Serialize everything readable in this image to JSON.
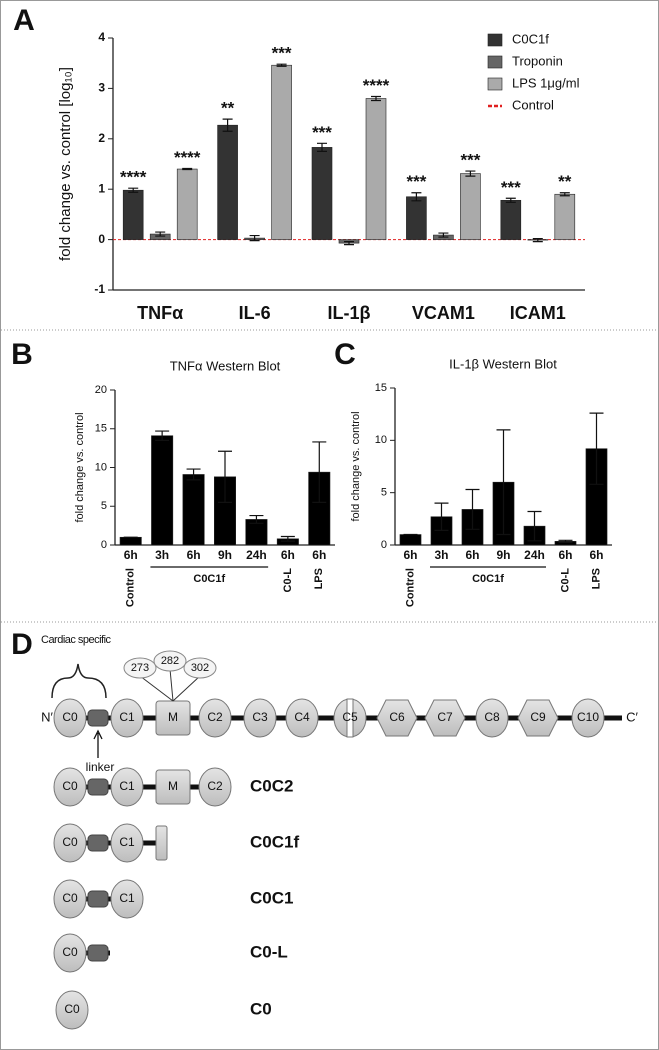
{
  "chart_data": [
    {
      "type": "bar",
      "panel_label": "A",
      "ylabel": "fold change vs. control [log₁₀]",
      "categories": [
        "TNFα",
        "IL-6",
        "IL-1β",
        "VCAM1",
        "ICAM1"
      ],
      "series": [
        {
          "name": "C0C1f",
          "color": "#333333",
          "values": [
            0.98,
            2.27,
            1.83,
            0.85,
            0.78
          ],
          "errors": [
            0.04,
            0.12,
            0.08,
            0.08,
            0.04
          ],
          "significance": [
            "****",
            "**",
            "***",
            "***",
            "***"
          ]
        },
        {
          "name": "Troponin",
          "color": "#666666",
          "values": [
            0.11,
            0.03,
            -0.07,
            0.09,
            -0.01
          ],
          "errors": [
            0.04,
            0.05,
            0.03,
            0.04,
            0.03
          ]
        },
        {
          "name": "LPS 1μg/ml",
          "color": "#aaaaaa",
          "values": [
            1.4,
            3.46,
            2.8,
            1.31,
            0.9
          ],
          "errors": [
            0.01,
            0.02,
            0.04,
            0.05,
            0.03
          ],
          "significance": [
            "****",
            "***",
            "****",
            "***",
            "**"
          ]
        }
      ],
      "reference_line": {
        "name": "Control",
        "value": 0,
        "color": "#e02020"
      },
      "ylim": [
        -1,
        4
      ],
      "yticks": [
        -1,
        0,
        1,
        2,
        3,
        4
      ],
      "legend": "top-right"
    },
    {
      "type": "bar",
      "panel_label": "B",
      "title": "TNFα  Western Blot",
      "ylabel": "fold change vs. control",
      "categories": [
        "6h",
        "3h",
        "6h",
        "9h",
        "24h",
        "6h",
        "6h"
      ],
      "values": [
        1.0,
        14.1,
        9.1,
        8.8,
        3.3,
        0.8,
        9.4
      ],
      "errors": [
        0,
        0.6,
        0.7,
        3.3,
        0.5,
        0.3,
        3.9
      ],
      "color": "#000000",
      "groups": [
        {
          "label": "Control",
          "start": 0,
          "end": 0
        },
        {
          "label": "C0C1f",
          "start": 1,
          "end": 4
        },
        {
          "label": "C0-L",
          "start": 5,
          "end": 5
        },
        {
          "label": "LPS",
          "start": 6,
          "end": 6
        }
      ],
      "ylim": [
        0,
        20
      ],
      "yticks": [
        0,
        5,
        10,
        15,
        20
      ]
    },
    {
      "type": "bar",
      "panel_label": "C",
      "title": "IL-1β Western Blot",
      "ylabel": "fold change vs. control",
      "categories": [
        "6h",
        "3h",
        "6h",
        "9h",
        "24h",
        "6h",
        "6h"
      ],
      "values": [
        1.0,
        2.7,
        3.4,
        6.0,
        1.8,
        0.35,
        9.2
      ],
      "errors": [
        0,
        1.3,
        1.9,
        5.0,
        1.4,
        0.1,
        3.4
      ],
      "color": "#000000",
      "groups": [
        {
          "label": "Control",
          "start": 0,
          "end": 0
        },
        {
          "label": "C0C1f",
          "start": 1,
          "end": 4
        },
        {
          "label": "C0-L",
          "start": 5,
          "end": 5
        },
        {
          "label": "LPS",
          "start": 6,
          "end": 6
        }
      ],
      "ylim": [
        0,
        15
      ],
      "yticks": [
        0,
        5,
        10,
        15
      ]
    }
  ],
  "diagram": {
    "panel_label": "D",
    "cardiac_label": "Cardiac specific",
    "n_term": "N′",
    "c_term": "C′",
    "linker_label": "linker",
    "domains": [
      "C0",
      "C1",
      "M",
      "C2",
      "C3",
      "C4",
      "C5",
      "C6",
      "C7",
      "C8",
      "C9",
      "C10"
    ],
    "phospho_sites": [
      "273",
      "282",
      "302"
    ],
    "constructs": [
      {
        "name": "C0C2",
        "domains": [
          "C0",
          "C1",
          "M",
          "C2"
        ]
      },
      {
        "name": "C0C1f",
        "domains": [
          "C0",
          "C1"
        ]
      },
      {
        "name": "C0C1",
        "domains": [
          "C0",
          "C1"
        ]
      },
      {
        "name": "C0-L",
        "domains": [
          "C0"
        ]
      },
      {
        "name": "C0",
        "domains": [
          "C0"
        ]
      }
    ]
  }
}
